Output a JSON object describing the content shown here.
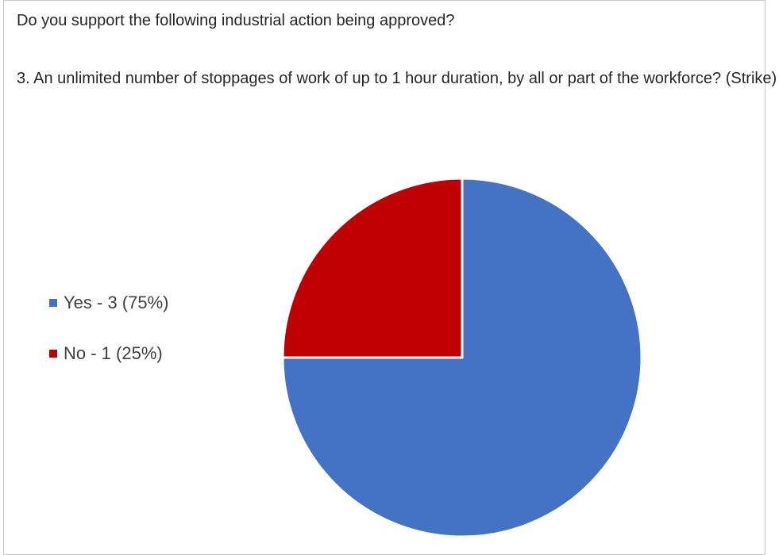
{
  "question": "Do you support the following industrial action being approved?",
  "detail": "3. An unlimited number of stoppages of work of up to 1 hour duration, by all or part of the workforce? (Strike)",
  "chart_data": {
    "type": "pie",
    "title": "",
    "slices": [
      {
        "label": "Yes - 3 (75%)",
        "name": "Yes",
        "count": 3,
        "percent": 75,
        "color": "#4472c4"
      },
      {
        "label": "No - 1 (25%)",
        "name": "No",
        "count": 1,
        "percent": 25,
        "color": "#c00000"
      }
    ],
    "legend_position": "left",
    "start_angle": "12 o'clock",
    "direction": "clockwise"
  }
}
